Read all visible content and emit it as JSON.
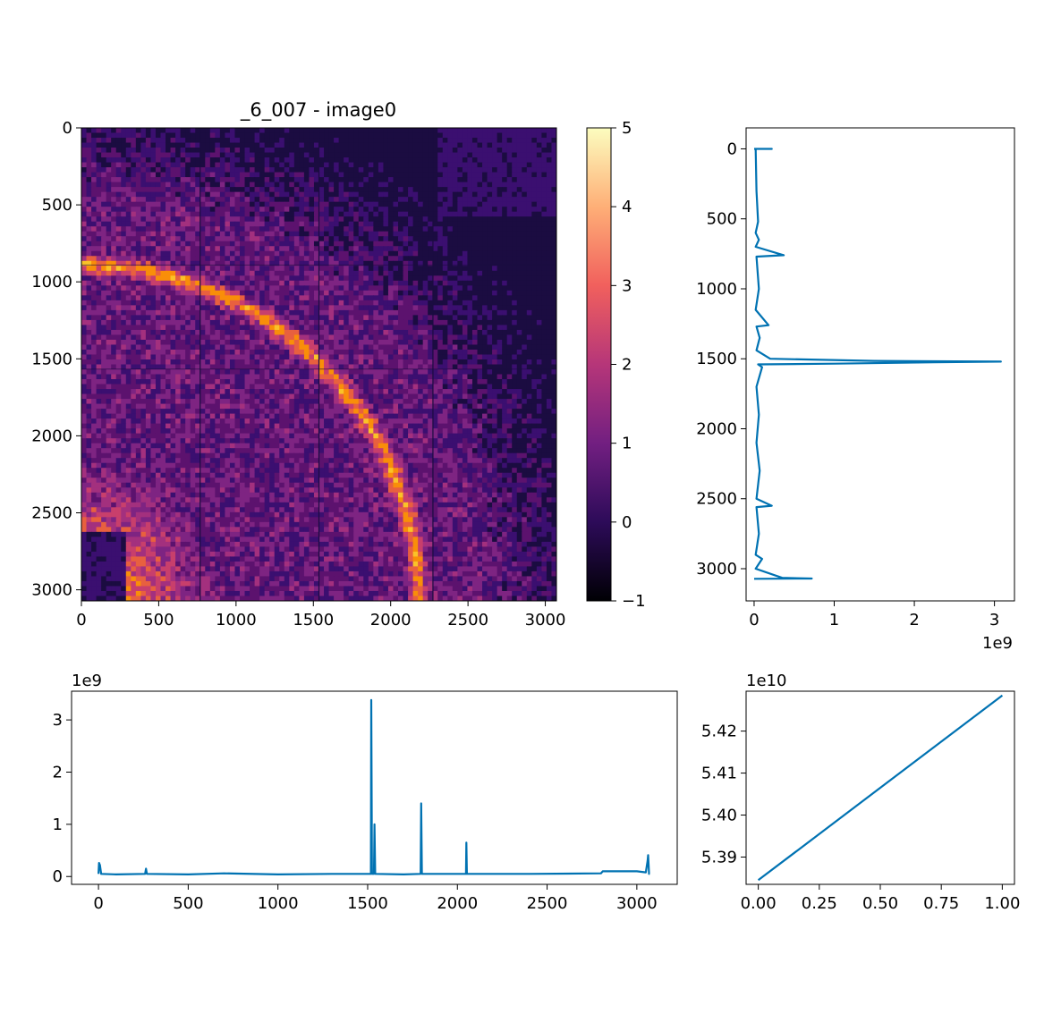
{
  "chart_data": [
    {
      "type": "heatmap",
      "title": "_6_007 - image0",
      "colormap": "inferno",
      "xlim": [
        0,
        3072
      ],
      "ylim": [
        3072,
        0
      ],
      "x_ticks": [
        "0",
        "500",
        "1000",
        "1500",
        "2000",
        "2500",
        "3000"
      ],
      "y_ticks": [
        "0",
        "500",
        "1000",
        "1500",
        "2000",
        "2500",
        "3000"
      ],
      "colorbar": {
        "range": [
          -1,
          5
        ],
        "ticks": [
          "5",
          "4",
          "3",
          "2",
          "1",
          "0",
          "−1"
        ]
      },
      "ring": {
        "center_x": 0,
        "center_y": 3072,
        "radius": 2180,
        "width": 90
      }
    },
    {
      "type": "line",
      "orientation": "vertical",
      "xlim": [
        -0.1,
        3.25
      ],
      "ylim": [
        3230,
        -150
      ],
      "x_ticks": [
        "0",
        "1",
        "2",
        "3"
      ],
      "x_offset_label": "1e9",
      "y_ticks": [
        "0",
        "500",
        "1000",
        "1500",
        "2000",
        "2500",
        "3000"
      ],
      "color": "#0072b2",
      "series": [
        {
          "points": [
            [
              0.0,
              0
            ],
            [
              0.22,
              0
            ],
            [
              0.02,
              0
            ],
            [
              0.03,
              300
            ],
            [
              0.05,
              520
            ],
            [
              0.02,
              600
            ],
            [
              0.06,
              650
            ],
            [
              0.02,
              700
            ],
            [
              0.37,
              760
            ],
            [
              0.03,
              770
            ],
            [
              0.06,
              1000
            ],
            [
              0.02,
              1150
            ],
            [
              0.18,
              1260
            ],
            [
              0.03,
              1270
            ],
            [
              0.07,
              1350
            ],
            [
              0.03,
              1440
            ],
            [
              0.2,
              1500
            ],
            [
              1.5,
              1515
            ],
            [
              3.08,
              1520
            ],
            [
              2.25,
              1525
            ],
            [
              1.0,
              1535
            ],
            [
              0.05,
              1540
            ],
            [
              0.1,
              1560
            ],
            [
              0.03,
              1700
            ],
            [
              0.06,
              1900
            ],
            [
              0.03,
              2100
            ],
            [
              0.07,
              2300
            ],
            [
              0.03,
              2500
            ],
            [
              0.22,
              2550
            ],
            [
              0.03,
              2560
            ],
            [
              0.06,
              2750
            ],
            [
              0.02,
              2900
            ],
            [
              0.1,
              2930
            ],
            [
              0.02,
              3000
            ],
            [
              0.35,
              3065
            ],
            [
              0.72,
              3070
            ],
            [
              0.0,
              3072
            ]
          ]
        }
      ]
    },
    {
      "type": "line",
      "xlim": [
        -150,
        3225
      ],
      "ylim": [
        -0.15,
        3.55
      ],
      "x_ticks": [
        "0",
        "500",
        "1000",
        "1500",
        "2000",
        "2500",
        "3000"
      ],
      "y_ticks": [
        "0",
        "1",
        "2",
        "3"
      ],
      "y_offset_label": "1e9",
      "color": "#0072b2",
      "series": [
        {
          "points": [
            [
              0,
              0.05
            ],
            [
              3,
              0.26
            ],
            [
              8,
              0.22
            ],
            [
              15,
              0.05
            ],
            [
              100,
              0.04
            ],
            [
              260,
              0.05
            ],
            [
              265,
              0.15
            ],
            [
              270,
              0.05
            ],
            [
              500,
              0.04
            ],
            [
              700,
              0.06
            ],
            [
              1000,
              0.04
            ],
            [
              1300,
              0.05
            ],
            [
              1500,
              0.05
            ],
            [
              1518,
              0.05
            ],
            [
              1520,
              3.38
            ],
            [
              1524,
              0.05
            ],
            [
              1535,
              0.05
            ],
            [
              1538,
              1.0
            ],
            [
              1542,
              0.05
            ],
            [
              1700,
              0.04
            ],
            [
              1795,
              0.05
            ],
            [
              1798,
              1.4
            ],
            [
              1802,
              0.05
            ],
            [
              2000,
              0.05
            ],
            [
              2048,
              0.05
            ],
            [
              2050,
              0.65
            ],
            [
              2053,
              0.05
            ],
            [
              2400,
              0.05
            ],
            [
              2800,
              0.06
            ],
            [
              2810,
              0.1
            ],
            [
              3000,
              0.1
            ],
            [
              3050,
              0.08
            ],
            [
              3060,
              0.3
            ],
            [
              3063,
              0.41
            ],
            [
              3068,
              0.05
            ],
            [
              3072,
              0.05
            ]
          ]
        }
      ]
    },
    {
      "type": "line",
      "xlim": [
        -0.05,
        1.05
      ],
      "ylim": [
        5.3835,
        5.4295
      ],
      "x_ticks": [
        "0.00",
        "0.25",
        "0.50",
        "0.75",
        "1.00"
      ],
      "y_ticks": [
        "5.39",
        "5.40",
        "5.41",
        "5.42"
      ],
      "y_offset_label": "1e10",
      "color": "#0072b2",
      "series": [
        {
          "points": [
            [
              0.0,
              5.3845
            ],
            [
              1.0,
              5.4285
            ]
          ]
        }
      ]
    }
  ]
}
